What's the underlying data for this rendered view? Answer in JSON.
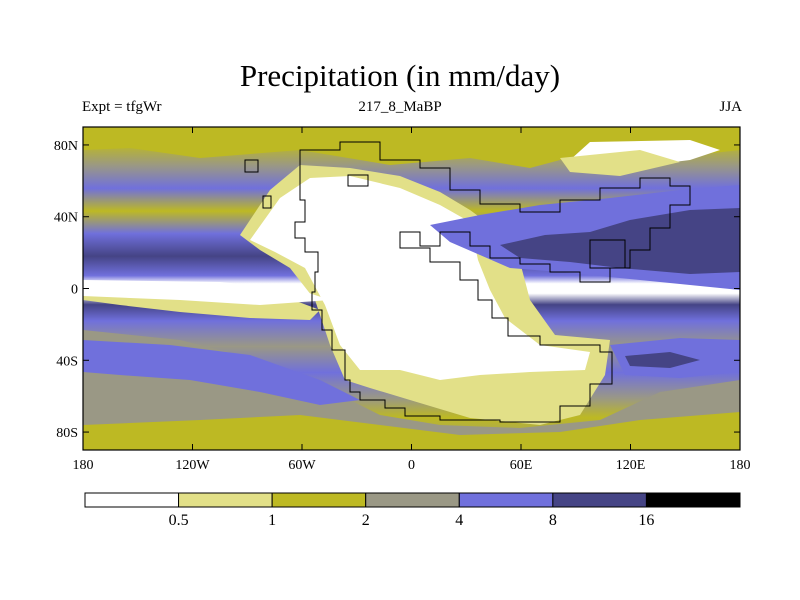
{
  "title": "Precipitation (in mm/day)",
  "left_label": "Expt = tfgWr",
  "center_label": "217_8_MaBP",
  "right_label": "JJA",
  "lat_ticks": [
    {
      "label": "80N",
      "value": 80
    },
    {
      "label": "40N",
      "value": 40
    },
    {
      "label": "0",
      "value": 0
    },
    {
      "label": "40S",
      "value": -40
    },
    {
      "label": "80S",
      "value": -80
    }
  ],
  "lon_ticks": [
    {
      "label": "180",
      "value": -180
    },
    {
      "label": "120W",
      "value": -120
    },
    {
      "label": "60W",
      "value": -60
    },
    {
      "label": "0",
      "value": 0
    },
    {
      "label": "60E",
      "value": 60
    },
    {
      "label": "120E",
      "value": 120
    },
    {
      "label": "180",
      "value": 180
    }
  ],
  "colorbar": {
    "boundaries": [
      "0.5",
      "1",
      "2",
      "4",
      "8",
      "16"
    ],
    "colors": [
      "#ffffff",
      "#e2e088",
      "#bdb923",
      "#9a9885",
      "#7070dc",
      "#454485",
      "#000000"
    ]
  },
  "colors": {
    "dry": "#ffffff",
    "light": "#e2e088",
    "olive": "#bdb923",
    "grey": "#9a9885",
    "blue": "#7070dc",
    "dark_blue": "#454485",
    "black": "#000000"
  }
}
